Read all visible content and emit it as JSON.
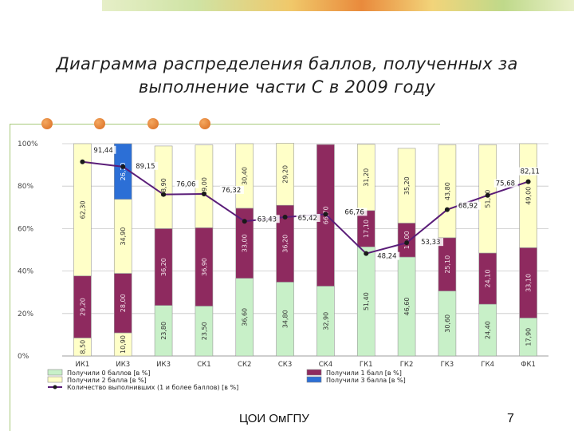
{
  "title_lines": [
    "Диаграмма распределения баллов, полученных за",
    "выполнение части С в 2009 году"
  ],
  "footer": "ЦОИ ОмГПУ",
  "page_number": "7",
  "colors": {
    "score0": "#ffffc8",
    "score1": "#8e2a5f",
    "score2": "#ffffc8",
    "score3": "#2c6fd6",
    "score2_alt": "#c8f0c8",
    "line": "#5a1d78",
    "accent": "#a8c97a"
  },
  "chart_data": {
    "type": "bar",
    "stacked": true,
    "ylim": [
      0,
      100
    ],
    "y_ticks": [
      "0%",
      "20%",
      "40%",
      "60%",
      "80%",
      "100%"
    ],
    "grid": true,
    "categories": [
      "ИК1",
      "ИК3",
      "ИК3",
      "СК1",
      "СК2",
      "СК3",
      "СК4",
      "ГК1",
      "ГК2",
      "ГК3",
      "ГК4",
      "ФК1"
    ],
    "series": [
      {
        "name": "Получили 0 баллов [в %]",
        "values": [
          8.5,
          10.9,
          23.8,
          23.5,
          36.6,
          34.8,
          32.9,
          51.4,
          46.6,
          30.6,
          24.4,
          17.9
        ]
      },
      {
        "name": "Получили 1 балл [в %]",
        "values": [
          29.2,
          28.0,
          36.2,
          36.9,
          33.0,
          36.2,
          66.7,
          17.1,
          16.0,
          25.1,
          24.1,
          33.1
        ]
      },
      {
        "name": "Получили 2 балла [в %]",
        "values": [
          62.3,
          34.9,
          38.9,
          39.0,
          30.4,
          29.2,
          0,
          31.2,
          35.2,
          43.8,
          51.0,
          49.0
        ]
      },
      {
        "name": "Получили 3 балла [в %]",
        "values": [
          0,
          26.2,
          0,
          0,
          0,
          0,
          0,
          0,
          0,
          0,
          0,
          0
        ]
      }
    ],
    "bar_labels": [
      [
        "8,50",
        "29,20",
        "62,30",
        ""
      ],
      [
        "10,90",
        "28,00",
        "34,90",
        "26,20"
      ],
      [
        "23,80",
        "36,20",
        "38,90",
        ""
      ],
      [
        "23,50",
        "36,90",
        "39,00",
        ""
      ],
      [
        "36,60",
        "33,00",
        "30,40",
        ""
      ],
      [
        "34,80",
        "36,20",
        "29,20",
        ""
      ],
      [
        "32,90",
        "66,70",
        "",
        ""
      ],
      [
        "51,40",
        "17,10",
        "31,20",
        ""
      ],
      [
        "46,60",
        "16,00",
        "35,20",
        ""
      ],
      [
        "30,60",
        "25,10",
        "43,80",
        ""
      ],
      [
        "24,40",
        "24,10",
        "51,00",
        ""
      ],
      [
        "17,90",
        "33,10",
        "49,00",
        ""
      ]
    ],
    "line_series": {
      "name": "Количество выполнивших (1 и более баллов) [в %]",
      "values": [
        91.44,
        89.15,
        76.06,
        76.32,
        63.43,
        65.42,
        66.76,
        48.24,
        53.33,
        68.92,
        75.68,
        82.11
      ],
      "labels": [
        "91,44",
        "89,15",
        "76,06",
        "76,32",
        "63,43",
        "65,42",
        "66,76",
        "48,24",
        "53,33",
        "68,92",
        "75,68",
        "82,11"
      ]
    },
    "legend": {
      "placement": "bottom",
      "items": [
        {
          "label": "Получили 0 баллов [в %]",
          "kind": "box0"
        },
        {
          "label": "Получили 1 балл [в %]",
          "kind": "box1"
        },
        {
          "label": "Получили 2 балла [в %]",
          "kind": "box2"
        },
        {
          "label": "Получили 3 балла [в %]",
          "kind": "box3"
        },
        {
          "label": "Количество выполнивших (1 и более баллов) [в %]",
          "kind": "line"
        }
      ]
    }
  }
}
